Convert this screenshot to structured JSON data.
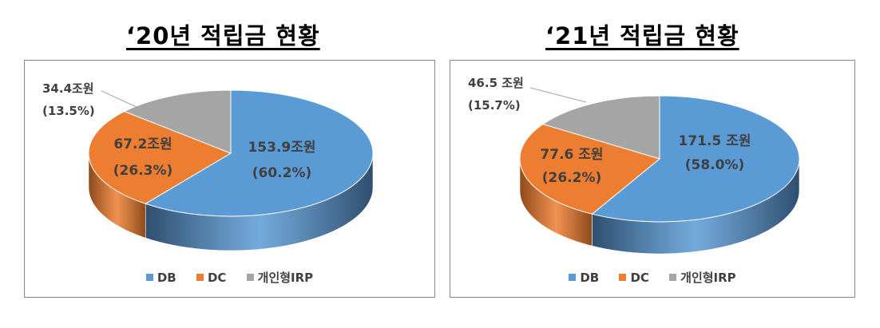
{
  "chart_data": [
    {
      "type": "pie",
      "title": "‘20년 적립금 현황",
      "categories": [
        "DB",
        "DC",
        "개인형IRP"
      ],
      "series": [
        {
          "values": [
            153.9,
            67.2,
            34.4
          ]
        }
      ],
      "percents": [
        60.2,
        26.3,
        13.5
      ],
      "labels": [
        {
          "value": "153.9조원",
          "pct": "(60.2%)"
        },
        {
          "value": "67.2조원",
          "pct": "(26.3%)"
        },
        {
          "value": "34.4조원",
          "pct": "(13.5%)"
        }
      ],
      "legend": [
        "DB",
        "DC",
        "개인형IRP"
      ],
      "legend_position": "bottom"
    },
    {
      "type": "pie",
      "title": "‘21년 적립금 현황",
      "categories": [
        "DB",
        "DC",
        "개인형IRP"
      ],
      "series": [
        {
          "values": [
            171.5,
            77.6,
            46.5
          ]
        }
      ],
      "percents": [
        58.0,
        26.2,
        15.7
      ],
      "labels": [
        {
          "value": "171.5 조원",
          "pct": "(58.0%)"
        },
        {
          "value": "77.6 조원",
          "pct": "(26.2%)"
        },
        {
          "value": "46.5 조원",
          "pct": "(15.7%)"
        }
      ],
      "legend": [
        "DB",
        "DC",
        "개인형IRP"
      ],
      "legend_position": "bottom"
    }
  ],
  "colors": {
    "DB": "#5b9bd5",
    "DC": "#ed7d31",
    "IRP": "#a5a5a5",
    "DB_side": "#2f4e6e",
    "DC_side": "#8c4a1c",
    "IRP_side": "#6b6b6b"
  }
}
